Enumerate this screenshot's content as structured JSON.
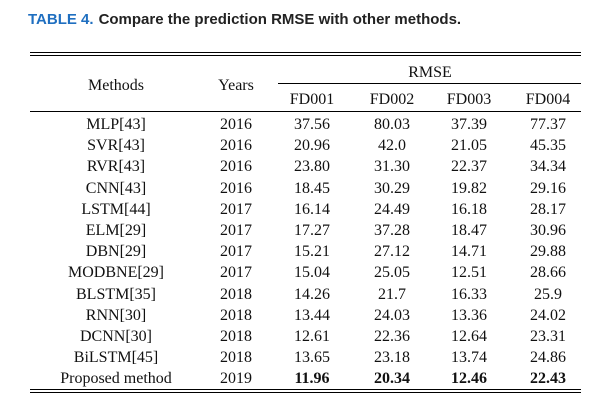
{
  "caption": {
    "label": "TABLE 4.",
    "text": "Compare the prediction RMSE with other methods."
  },
  "table": {
    "header": {
      "methods": "Methods",
      "years": "Years",
      "group": "RMSE",
      "datasets": [
        "FD001",
        "FD002",
        "FD003",
        "FD004"
      ]
    },
    "rows": [
      {
        "method": "MLP[43]",
        "year": "2016",
        "values": [
          "37.56",
          "80.03",
          "37.39",
          "77.37"
        ]
      },
      {
        "method": "SVR[43]",
        "year": "2016",
        "values": [
          "20.96",
          "42.0",
          "21.05",
          "45.35"
        ]
      },
      {
        "method": "RVR[43]",
        "year": "2016",
        "values": [
          "23.80",
          "31.30",
          "22.37",
          "34.34"
        ]
      },
      {
        "method": "CNN[43]",
        "year": "2016",
        "values": [
          "18.45",
          "30.29",
          "19.82",
          "29.16"
        ]
      },
      {
        "method": "LSTM[44]",
        "year": "2017",
        "values": [
          "16.14",
          "24.49",
          "16.18",
          "28.17"
        ]
      },
      {
        "method": "ELM[29]",
        "year": "2017",
        "values": [
          "17.27",
          "37.28",
          "18.47",
          "30.96"
        ]
      },
      {
        "method": "DBN[29]",
        "year": "2017",
        "values": [
          "15.21",
          "27.12",
          "14.71",
          "29.88"
        ]
      },
      {
        "method": "MODBNE[29]",
        "year": "2017",
        "values": [
          "15.04",
          "25.05",
          "12.51",
          "28.66"
        ]
      },
      {
        "method": "BLSTM[35]",
        "year": "2018",
        "values": [
          "14.26",
          "21.7",
          "16.33",
          "25.9"
        ]
      },
      {
        "method": "RNN[30]",
        "year": "2018",
        "values": [
          "13.44",
          "24.03",
          "13.36",
          "24.02"
        ]
      },
      {
        "method": "DCNN[30]",
        "year": "2018",
        "values": [
          "12.61",
          "22.36",
          "12.64",
          "23.31"
        ]
      },
      {
        "method": "BiLSTM[45]",
        "year": "2018",
        "values": [
          "13.65",
          "23.18",
          "13.74",
          "24.86"
        ]
      },
      {
        "method": "Proposed method",
        "year": "2019",
        "values": [
          "11.96",
          "20.34",
          "12.46",
          "22.43"
        ],
        "bold_values": true
      }
    ]
  }
}
